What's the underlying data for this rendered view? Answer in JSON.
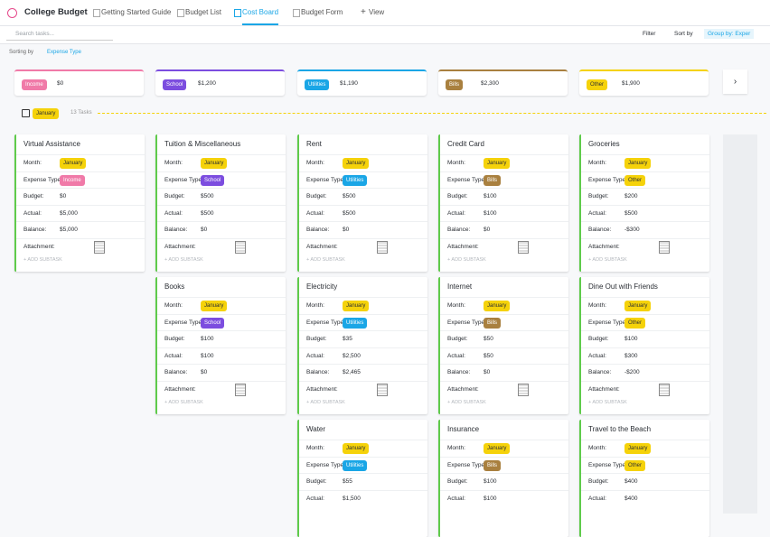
{
  "header": {
    "title": "College Budget",
    "tabs": [
      "Getting Started Guide",
      "Budget List",
      "Cost Board",
      "Budget Form"
    ],
    "active_tab": 2,
    "add_view": "View"
  },
  "toolbar": {
    "search": "Search tasks...",
    "filter": "Filter",
    "sort": "Sort by",
    "group": "Group by: Exper",
    "sorting_label": "Sorting by",
    "sorting_value": "Expense Type"
  },
  "group": {
    "name": "January",
    "count": "13 Tasks"
  },
  "labels": {
    "month": "Month:",
    "type": "Expense Type:",
    "budget": "Budget:",
    "actual": "Actual:",
    "balance": "Balance:",
    "attachment": "Attachment:",
    "add_subtask": "+ ADD SUBTASK"
  },
  "columns": [
    {
      "label": "Income",
      "amount": "$0",
      "color": "#f07aa8",
      "cards": [
        {
          "title": "Virtual Assistance",
          "month": "January",
          "type": "Income",
          "budget": "$0",
          "actual": "$5,000",
          "balance": "$5,000"
        }
      ]
    },
    {
      "label": "School",
      "amount": "$1,200",
      "color": "#7c4ddf",
      "cards": [
        {
          "title": "Tuition & Miscellaneous",
          "month": "January",
          "type": "School",
          "budget": "$500",
          "actual": "$500",
          "balance": "$0"
        },
        {
          "title": "Books",
          "month": "January",
          "type": "School",
          "budget": "$100",
          "actual": "$100",
          "balance": "$0"
        }
      ]
    },
    {
      "label": "Utilities",
      "amount": "$1,190",
      "color": "#1aa6e6",
      "cards": [
        {
          "title": "Rent",
          "month": "January",
          "type": "Utilities",
          "budget": "$500",
          "actual": "$500",
          "balance": "$0"
        },
        {
          "title": "Electricity",
          "month": "January",
          "type": "Utilities",
          "budget": "$35",
          "actual": "$2,500",
          "balance": "$2,465"
        },
        {
          "title": "Water",
          "month": "January",
          "type": "Utilities",
          "budget": "$55",
          "actual": "$1,500"
        }
      ]
    },
    {
      "label": "Bills",
      "amount": "$2,300",
      "color": "#a9803f",
      "cards": [
        {
          "title": "Credit Card",
          "month": "January",
          "type": "Bills",
          "budget": "$100",
          "actual": "$100",
          "balance": "$0"
        },
        {
          "title": "Internet",
          "month": "January",
          "type": "Bills",
          "budget": "$50",
          "actual": "$50",
          "balance": "$0"
        },
        {
          "title": "Insurance",
          "month": "January",
          "type": "Bills",
          "budget": "$100",
          "actual": "$100"
        }
      ]
    },
    {
      "label": "Other",
      "amount": "$1,900",
      "color": "#f5d20a",
      "cards": [
        {
          "title": "Groceries",
          "month": "January",
          "type": "Other",
          "budget": "$200",
          "actual": "$500",
          "balance": "-$300"
        },
        {
          "title": "Dine Out with Friends",
          "month": "January",
          "type": "Other",
          "budget": "$100",
          "actual": "$300",
          "balance": "-$200"
        },
        {
          "title": "Travel to the Beach",
          "month": "January",
          "type": "Other",
          "budget": "$400",
          "actual": "$400"
        }
      ]
    }
  ]
}
